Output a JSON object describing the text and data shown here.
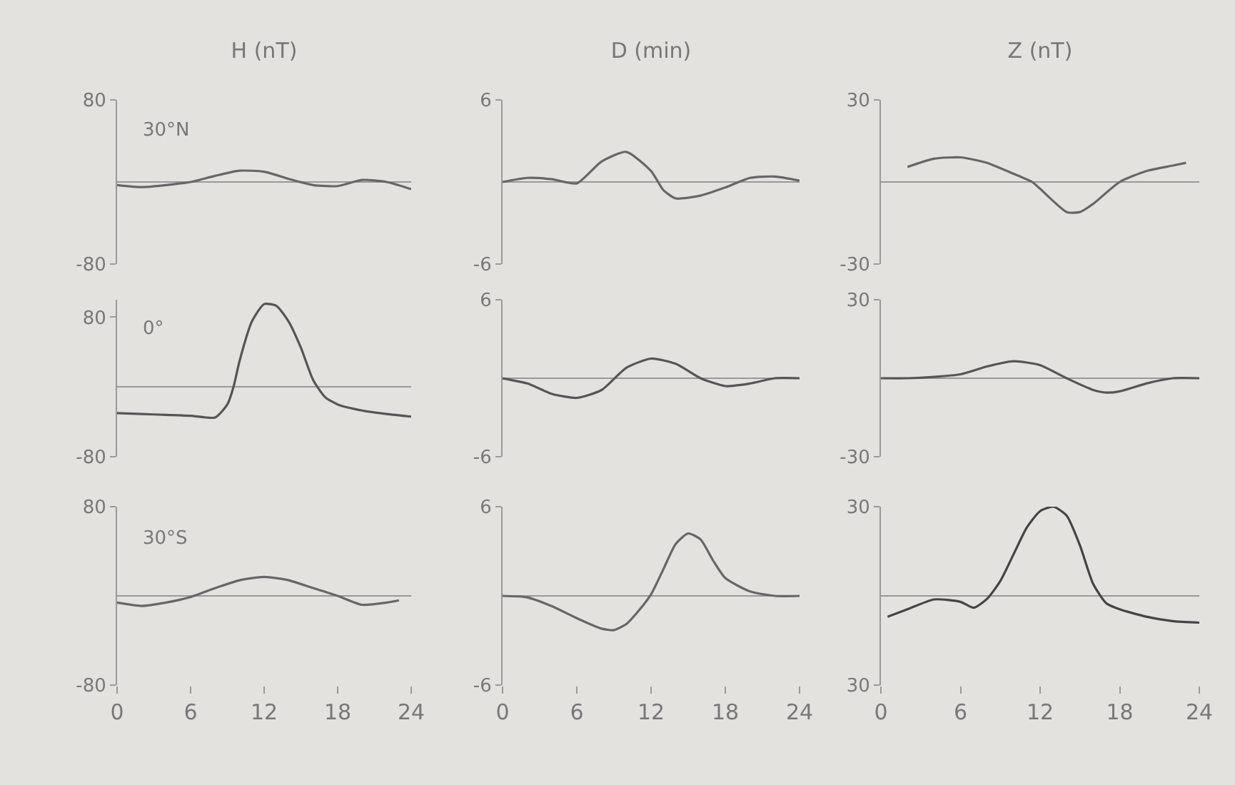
{
  "chart_data": [
    {
      "type": "line",
      "title": "H (nT)",
      "annotations": [
        "30°N"
      ],
      "xlim": [
        0,
        24
      ],
      "xticks": [
        0,
        6,
        12,
        18,
        24
      ],
      "ylim": [
        -80,
        80
      ],
      "yticks": [
        -80,
        80
      ],
      "tick_labels": "y",
      "series": [
        {
          "color": "#666666",
          "x": [
            0,
            2,
            4,
            6,
            8,
            10,
            12,
            14,
            16,
            18,
            20,
            22,
            24
          ],
          "values": [
            -3,
            -5,
            -3,
            0,
            6,
            11,
            10,
            3,
            -3,
            -4,
            2,
            0,
            -7
          ]
        }
      ]
    },
    {
      "type": "line",
      "title": "D (min)",
      "xlim": [
        0,
        24
      ],
      "xticks": [
        0,
        6,
        12,
        18,
        24
      ],
      "ylim": [
        -6,
        6
      ],
      "yticks": [
        -6,
        6
      ],
      "tick_labels": "y",
      "series": [
        {
          "color": "#666666",
          "x": [
            0,
            2,
            4,
            6,
            8,
            10,
            12,
            13,
            14,
            16,
            18,
            20,
            22,
            24
          ],
          "values": [
            0,
            0.3,
            0.2,
            -0.1,
            1.5,
            2.2,
            0.8,
            -0.6,
            -1.2,
            -1.0,
            -0.4,
            0.3,
            0.4,
            0.1
          ]
        }
      ]
    },
    {
      "type": "line",
      "title": "Z (nT)",
      "xlim": [
        0,
        24
      ],
      "xticks": [
        0,
        6,
        12,
        18,
        24
      ],
      "ylim": [
        -30,
        30
      ],
      "yticks": [
        -30,
        30
      ],
      "tick_labels": "y",
      "series": [
        {
          "color": "#666666",
          "x": [
            2,
            4,
            6,
            8,
            10,
            11.4,
            12,
            14,
            15,
            16,
            18,
            20,
            22,
            23
          ],
          "values": [
            5.5,
            8.5,
            9,
            7,
            3,
            0,
            -2.5,
            -11,
            -11,
            -8,
            0,
            4,
            6,
            7
          ]
        }
      ]
    },
    {
      "type": "line",
      "annotations": [
        "0°"
      ],
      "xlim": [
        0,
        24
      ],
      "xticks": [
        0,
        6,
        12,
        18,
        24
      ],
      "ylim": [
        -80,
        100
      ],
      "yticks": [
        -80,
        80
      ],
      "tick_labels": "y",
      "series": [
        {
          "color": "#555555",
          "x": [
            0,
            2,
            4,
            6,
            8,
            9,
            9.5,
            10,
            11,
            12,
            13,
            14,
            15,
            16,
            17,
            18,
            20,
            22,
            24
          ],
          "values": [
            -30,
            -31,
            -32,
            -33,
            -35,
            -20,
            0,
            30,
            75,
            95,
            93,
            75,
            45,
            8,
            -12,
            -20,
            -27,
            -31,
            -34
          ]
        }
      ]
    },
    {
      "type": "line",
      "xlim": [
        0,
        24
      ],
      "xticks": [
        0,
        6,
        12,
        18,
        24
      ],
      "ylim": [
        -6,
        6
      ],
      "yticks": [
        -6,
        6
      ],
      "tick_labels": "y",
      "series": [
        {
          "color": "#555555",
          "x": [
            0,
            2,
            4,
            6,
            8,
            10,
            12,
            14,
            16,
            18,
            20,
            22,
            24
          ],
          "values": [
            0,
            -0.4,
            -1.2,
            -1.5,
            -0.9,
            0.8,
            1.5,
            1.1,
            0,
            -0.6,
            -0.4,
            0,
            0
          ]
        }
      ]
    },
    {
      "type": "line",
      "xlim": [
        0,
        24
      ],
      "xticks": [
        0,
        6,
        12,
        18,
        24
      ],
      "ylim": [
        -30,
        30
      ],
      "yticks": [
        -30,
        30
      ],
      "tick_labels": "y",
      "series": [
        {
          "color": "#555555",
          "x": [
            0,
            2,
            4,
            6,
            8,
            10,
            12,
            14,
            16,
            17,
            18,
            20,
            22,
            24
          ],
          "values": [
            0,
            0,
            0.5,
            1.5,
            4.5,
            6.5,
            5,
            0,
            -4.5,
            -5.5,
            -5,
            -2,
            0,
            0
          ]
        }
      ]
    },
    {
      "type": "line",
      "annotations": [
        "30°S"
      ],
      "xlim": [
        0,
        24
      ],
      "xticks": [
        0,
        6,
        12,
        18,
        24
      ],
      "ylim": [
        -80,
        80
      ],
      "yticks": [
        -80,
        80
      ],
      "series": [
        {
          "color": "#666666",
          "x": [
            0,
            2,
            4,
            6,
            8,
            10,
            12,
            14,
            16,
            18,
            20,
            22,
            23
          ],
          "values": [
            -6,
            -9,
            -6,
            -1,
            7,
            14,
            17,
            14,
            7,
            0,
            -8,
            -6,
            -4
          ]
        }
      ]
    },
    {
      "type": "line",
      "xlim": [
        0,
        24
      ],
      "xticks": [
        0,
        6,
        12,
        18,
        24
      ],
      "ylim": [
        -6,
        6
      ],
      "yticks": [
        -6,
        6
      ],
      "series": [
        {
          "color": "#666666",
          "x": [
            0,
            2,
            4,
            6,
            8,
            9,
            10,
            11,
            12,
            13,
            14,
            15,
            16,
            17,
            18,
            20,
            22,
            24
          ],
          "values": [
            0,
            -0.1,
            -0.7,
            -1.5,
            -2.2,
            -2.3,
            -1.9,
            -1.0,
            0.1,
            1.8,
            3.5,
            4.2,
            3.8,
            2.4,
            1.2,
            0.3,
            0,
            0
          ]
        }
      ]
    },
    {
      "type": "line",
      "xlim": [
        0,
        24
      ],
      "xticks": [
        0,
        6,
        12,
        18,
        24
      ],
      "ylim": [
        -30,
        30
      ],
      "yticks": [
        {
          "value": -30,
          "label": "30"
        },
        30
      ],
      "series": [
        {
          "color": "#444444",
          "x": [
            0.5,
            2,
            4,
            6,
            7,
            8,
            9,
            10,
            11,
            12,
            13,
            14,
            15,
            16,
            17,
            18,
            20,
            22,
            24
          ],
          "values": [
            -7,
            -4.5,
            -1.2,
            -2,
            -4,
            -1,
            5,
            14,
            23,
            28.5,
            30,
            27,
            17,
            4,
            -2.5,
            -4.5,
            -7,
            -8.5,
            -9
          ]
        }
      ]
    }
  ]
}
